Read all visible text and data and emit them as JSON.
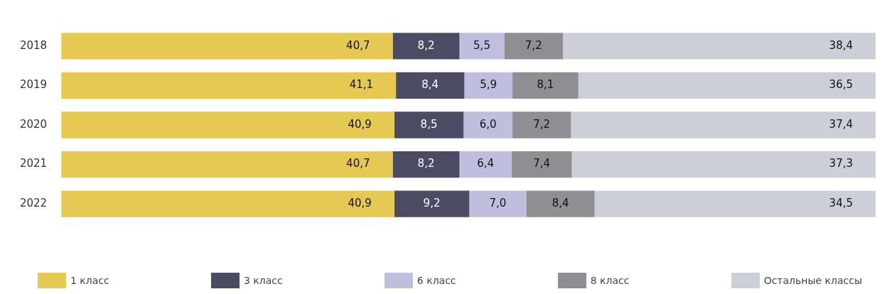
{
  "chart_data": {
    "type": "bar",
    "orientation": "horizontal",
    "stacked": true,
    "categories": [
      "2018",
      "2019",
      "2020",
      "2021",
      "2022"
    ],
    "series": [
      {
        "name": "1 класс",
        "color": "#e5c952",
        "values": [
          40.7,
          41.1,
          40.9,
          40.7,
          40.9
        ],
        "value_labels": [
          "40,7",
          "41,1",
          "40,9",
          "40,7",
          "40,9"
        ]
      },
      {
        "name": "3 класс",
        "color": "#4b4c63",
        "values": [
          8.2,
          8.4,
          8.5,
          8.2,
          9.2
        ],
        "value_labels": [
          "8,2",
          "8,4",
          "8,5",
          "8,2",
          "9,2"
        ]
      },
      {
        "name": "6 класс",
        "color": "#bfbedf",
        "values": [
          5.5,
          5.9,
          6.0,
          6.4,
          7.0
        ],
        "value_labels": [
          "5,5",
          "5,9",
          "6,0",
          "6,4",
          "7,0"
        ]
      },
      {
        "name": "8 класс",
        "color": "#8e8e93",
        "values": [
          7.2,
          8.1,
          7.2,
          7.4,
          8.4
        ],
        "value_labels": [
          "7,2",
          "8,1",
          "7,2",
          "7,4",
          "8,4"
        ]
      },
      {
        "name": "Остальные классы",
        "color": "#cccfd8",
        "values": [
          38.4,
          36.5,
          37.4,
          37.3,
          34.5
        ],
        "value_labels": [
          "38,4",
          "36,5",
          "37,4",
          "37,3",
          "34,5"
        ]
      }
    ],
    "xlim": [
      0,
      100
    ],
    "legend": "bottom",
    "tick_labels": "y"
  }
}
